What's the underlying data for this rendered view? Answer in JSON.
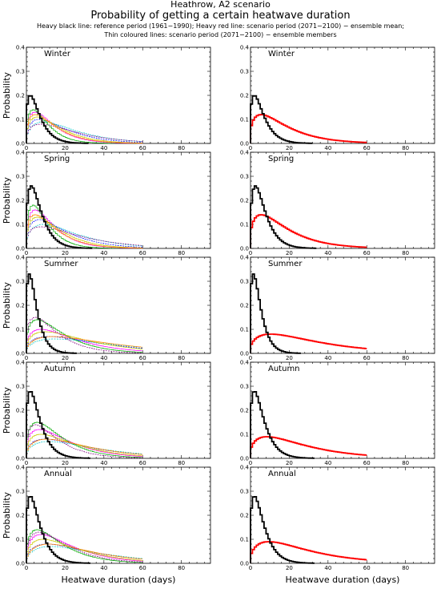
{
  "figure": {
    "title": "Heathrow, A2 scenario",
    "subtitle": "Probability of getting a certain heatwave duration",
    "captions": [
      "Heavy black line: reference period (1961−1990); Heavy red line: scenario period (2071−2100) − ensemble mean;",
      "Thin coloured lines: scenario period (2071−2100) − ensemble members"
    ],
    "ylabel": "Probability",
    "xlabel": "Heatwave duration (days)"
  },
  "colors": {
    "reference": "#000000",
    "ensemble_mean": "#ff0000",
    "members": [
      "#ff00ff",
      "#0000ff",
      "#00aa00",
      "#00c8c8",
      "#c8c800",
      "#800080",
      "#ff8800"
    ]
  },
  "chart_data": [
    {
      "type": "line",
      "title": "Winter",
      "ensemble": false,
      "xlim": [
        0,
        95
      ],
      "ylim": [
        0,
        0.4
      ],
      "x_ticks": [
        0,
        20,
        40,
        60,
        80
      ],
      "y_ticks": [
        0.0,
        0.1,
        0.2,
        0.3,
        0.4
      ],
      "reference": {
        "mode": 2.5,
        "peak": 0.2,
        "spread": 4
      },
      "ensemble_mean": {
        "mode": 6,
        "peak": 0.12,
        "spread": 12
      },
      "members": [
        {
          "mode": 5,
          "peak": 0.13,
          "spread": 8
        },
        {
          "mode": 7,
          "peak": 0.1,
          "spread": 12
        },
        {
          "mode": 4,
          "peak": 0.14,
          "spread": 6
        },
        {
          "mode": 9,
          "peak": 0.09,
          "spread": 14
        },
        {
          "mode": 6,
          "peak": 0.11,
          "spread": 10
        },
        {
          "mode": 8,
          "peak": 0.08,
          "spread": 16
        },
        {
          "mode": 5,
          "peak": 0.12,
          "spread": 9
        }
      ]
    },
    {
      "type": "line",
      "title": "Winter",
      "ensemble": true,
      "xlim": [
        0,
        95
      ],
      "ylim": [
        0,
        0.4
      ],
      "x_ticks": [
        0,
        20,
        40,
        60,
        80
      ],
      "y_ticks": [
        0.0,
        0.1,
        0.2,
        0.3,
        0.4
      ],
      "reference": {
        "mode": 2.5,
        "peak": 0.2,
        "spread": 4
      },
      "ensemble_mean": {
        "mode": 6,
        "peak": 0.12,
        "spread": 12
      },
      "members": []
    },
    {
      "type": "line",
      "title": "Spring",
      "ensemble": false,
      "xlim": [
        0,
        95
      ],
      "ylim": [
        0,
        0.4
      ],
      "x_ticks": [
        0,
        20,
        40,
        60,
        80
      ],
      "y_ticks": [
        0.0,
        0.1,
        0.2,
        0.3,
        0.4
      ],
      "reference": {
        "mode": 3,
        "peak": 0.26,
        "spread": 4
      },
      "ensemble_mean": {
        "mode": 6,
        "peak": 0.14,
        "spread": 12
      },
      "members": [
        {
          "mode": 5,
          "peak": 0.16,
          "spread": 8
        },
        {
          "mode": 7,
          "peak": 0.12,
          "spread": 12
        },
        {
          "mode": 4,
          "peak": 0.18,
          "spread": 6
        },
        {
          "mode": 9,
          "peak": 0.1,
          "spread": 15
        },
        {
          "mode": 6,
          "peak": 0.13,
          "spread": 10
        },
        {
          "mode": 8,
          "peak": 0.09,
          "spread": 18
        },
        {
          "mode": 5,
          "peak": 0.14,
          "spread": 9
        }
      ]
    },
    {
      "type": "line",
      "title": "Spring",
      "ensemble": true,
      "xlim": [
        0,
        95
      ],
      "ylim": [
        0,
        0.4
      ],
      "x_ticks": [
        0,
        20,
        40,
        60,
        80
      ],
      "y_ticks": [
        0.0,
        0.1,
        0.2,
        0.3,
        0.4
      ],
      "reference": {
        "mode": 3,
        "peak": 0.26,
        "spread": 4
      },
      "ensemble_mean": {
        "mode": 6,
        "peak": 0.14,
        "spread": 12
      },
      "members": []
    },
    {
      "type": "line",
      "title": "Summer",
      "ensemble": false,
      "xlim": [
        0,
        95
      ],
      "ylim": [
        0,
        0.4
      ],
      "x_ticks": [
        0,
        20,
        40,
        60,
        80
      ],
      "y_ticks": [
        0.0,
        0.1,
        0.2,
        0.3,
        0.4
      ],
      "reference": {
        "mode": 2,
        "peak": 0.33,
        "spread": 3
      },
      "ensemble_mean": {
        "mode": 11,
        "peak": 0.08,
        "spread": 22
      },
      "members": [
        {
          "mode": 8,
          "peak": 0.1,
          "spread": 16
        },
        {
          "mode": 12,
          "peak": 0.07,
          "spread": 24
        },
        {
          "mode": 6,
          "peak": 0.14,
          "spread": 12
        },
        {
          "mode": 15,
          "peak": 0.06,
          "spread": 28
        },
        {
          "mode": 10,
          "peak": 0.09,
          "spread": 20
        },
        {
          "mode": 5,
          "peak": 0.15,
          "spread": 10
        },
        {
          "mode": 14,
          "peak": 0.07,
          "spread": 26
        }
      ]
    },
    {
      "type": "line",
      "title": "Summer",
      "ensemble": true,
      "xlim": [
        0,
        95
      ],
      "ylim": [
        0,
        0.4
      ],
      "x_ticks": [
        0,
        20,
        40,
        60,
        80
      ],
      "y_ticks": [
        0.0,
        0.1,
        0.2,
        0.3,
        0.4
      ],
      "reference": {
        "mode": 2,
        "peak": 0.33,
        "spread": 3
      },
      "ensemble_mean": {
        "mode": 11,
        "peak": 0.08,
        "spread": 22
      },
      "members": []
    },
    {
      "type": "line",
      "title": "Autumn",
      "ensemble": false,
      "xlim": [
        0,
        95
      ],
      "ylim": [
        0,
        0.4
      ],
      "x_ticks": [
        0,
        20,
        40,
        60,
        80
      ],
      "y_ticks": [
        0.0,
        0.1,
        0.2,
        0.3,
        0.4
      ],
      "reference": {
        "mode": 2.5,
        "peak": 0.28,
        "spread": 4
      },
      "ensemble_mean": {
        "mode": 9,
        "peak": 0.09,
        "spread": 18
      },
      "members": [
        {
          "mode": 7,
          "peak": 0.12,
          "spread": 14
        },
        {
          "mode": 10,
          "peak": 0.08,
          "spread": 20
        },
        {
          "mode": 6,
          "peak": 0.15,
          "spread": 11
        },
        {
          "mode": 12,
          "peak": 0.07,
          "spread": 22
        },
        {
          "mode": 8,
          "peak": 0.1,
          "spread": 16
        },
        {
          "mode": 5,
          "peak": 0.14,
          "spread": 10
        },
        {
          "mode": 11,
          "peak": 0.08,
          "spread": 19
        }
      ]
    },
    {
      "type": "line",
      "title": "Autumn",
      "ensemble": true,
      "xlim": [
        0,
        95
      ],
      "ylim": [
        0,
        0.4
      ],
      "x_ticks": [
        0,
        20,
        40,
        60,
        80
      ],
      "y_ticks": [
        0.0,
        0.1,
        0.2,
        0.3,
        0.4
      ],
      "reference": {
        "mode": 2.5,
        "peak": 0.28,
        "spread": 4
      },
      "ensemble_mean": {
        "mode": 9,
        "peak": 0.09,
        "spread": 18
      },
      "members": []
    },
    {
      "type": "line",
      "title": "Annual",
      "ensemble": false,
      "xlim": [
        0,
        95
      ],
      "ylim": [
        0,
        0.4
      ],
      "x_ticks": [
        0,
        20,
        40,
        60,
        80
      ],
      "y_ticks": [
        0.0,
        0.1,
        0.2,
        0.3,
        0.4
      ],
      "reference": {
        "mode": 2.5,
        "peak": 0.28,
        "spread": 4
      },
      "ensemble_mean": {
        "mode": 10,
        "peak": 0.09,
        "spread": 18
      },
      "members": [
        {
          "mode": 8,
          "peak": 0.12,
          "spread": 14
        },
        {
          "mode": 11,
          "peak": 0.08,
          "spread": 20
        },
        {
          "mode": 6,
          "peak": 0.14,
          "spread": 11
        },
        {
          "mode": 13,
          "peak": 0.07,
          "spread": 22
        },
        {
          "mode": 9,
          "peak": 0.1,
          "spread": 16
        },
        {
          "mode": 7,
          "peak": 0.13,
          "spread": 12
        },
        {
          "mode": 12,
          "peak": 0.08,
          "spread": 19
        }
      ]
    },
    {
      "type": "line",
      "title": "Annual",
      "ensemble": true,
      "xlim": [
        0,
        95
      ],
      "ylim": [
        0,
        0.4
      ],
      "x_ticks": [
        0,
        20,
        40,
        60,
        80
      ],
      "y_ticks": [
        0.0,
        0.1,
        0.2,
        0.3,
        0.4
      ],
      "reference": {
        "mode": 2.5,
        "peak": 0.28,
        "spread": 4
      },
      "ensemble_mean": {
        "mode": 10,
        "peak": 0.09,
        "spread": 18
      },
      "members": []
    }
  ]
}
